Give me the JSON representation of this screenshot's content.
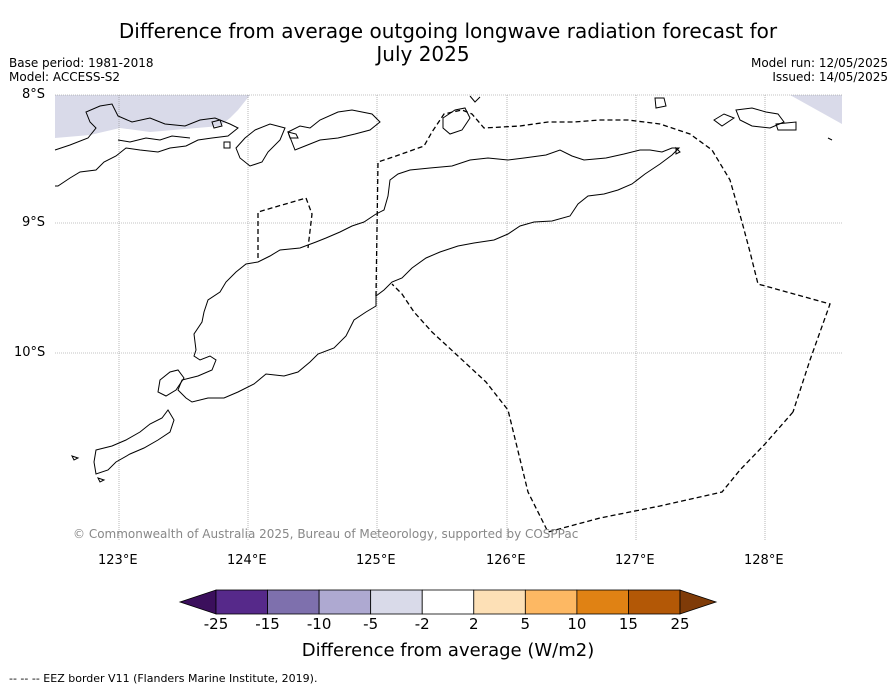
{
  "title": {
    "line1": "Difference from average outgoing longwave radiation forecast for",
    "line2": "July 2025"
  },
  "meta": {
    "base_period": "Base period: 1981-2018",
    "model": "Model: ACCESS-S2",
    "model_run": "Model run: 12/05/2025",
    "issued": "Issued: 14/05/2025"
  },
  "map": {
    "lat_labels": [
      "8°S",
      "9°S",
      "10°S"
    ],
    "lon_labels": [
      "123°E",
      "124°E",
      "125°E",
      "126°E",
      "127°E",
      "128°E"
    ],
    "copyright": "© Commonwealth of Australia 2025, Bureau of Meteorology, supported by COSPPac",
    "land_color": "#000000",
    "anomaly_fill_color": "#d9dae9",
    "gridline_color": "#888888"
  },
  "colorbar": {
    "title": "Difference from average (W/m2)",
    "ticks": [
      "-25",
      "-15",
      "-10",
      "-5",
      "-2",
      "2",
      "5",
      "10",
      "15",
      "25"
    ],
    "colors": [
      "#3b0f5c",
      "#56298a",
      "#7e70ad",
      "#aea9d1",
      "#d9dae9",
      "#ffffff",
      "#fde0b6",
      "#fdb863",
      "#e08214",
      "#b35806",
      "#7f3b08"
    ]
  },
  "footer": {
    "legend_text": "--  --  -- EEZ border V11 (Flanders Marine Institute, 2019)."
  }
}
